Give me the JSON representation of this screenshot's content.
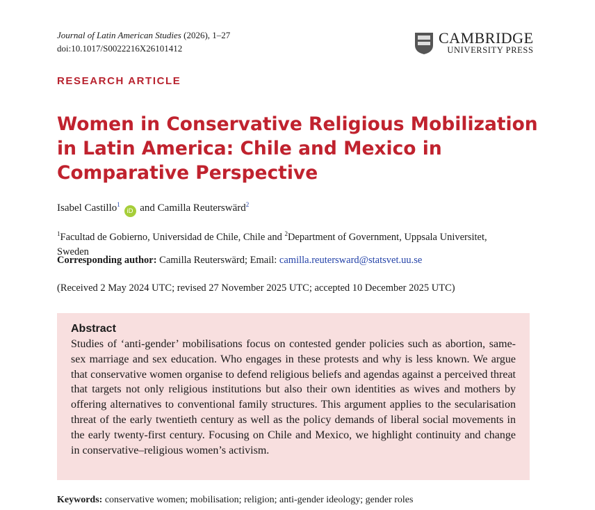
{
  "header": {
    "journal": "Journal of Latin American Studies",
    "issue": "(2026), 1–27",
    "doi": "doi:10.1017/S0022216X26101412",
    "logo_line1": "CAMBRIDGE",
    "logo_line2": "UNIVERSITY PRESS"
  },
  "article_type": "RESEARCH ARTICLE",
  "title": "Women in Conservative Religious Mobilization in Latin America: Chile and Mexico in Comparative Perspective",
  "authors": {
    "author1": "Isabel Castillo",
    "author1_sup": "1",
    "orcid": "iD",
    "connector": "and",
    "author2": "Camilla Reuterswärd",
    "author2_sup": "2"
  },
  "affiliations": {
    "sup1": "1",
    "aff1": "Facultad de Gobierno, Universidad de Chile, Chile and",
    "sup2": "2",
    "aff2": "Department of Government, Uppsala Universitet, Sweden"
  },
  "corresponding": {
    "label": "Corresponding author:",
    "text": "Camilla Reuterswärd; Email:",
    "email": "camilla.reutersward@statsvet.uu.se"
  },
  "received": "(Received 2 May 2024 UTC; revised 27 November 2025 UTC; accepted 10 December 2025 UTC)",
  "abstract": {
    "heading": "Abstract",
    "text": "Studies of ‘anti-gender’ mobilisations focus on contested gender policies such as abortion, same-sex marriage and sex education. Who engages in these protests and why is less known. We argue that conservative women organise to defend religious beliefs and agendas against a perceived threat that targets not only religious institutions but also their own identities as wives and mothers by offering alternatives to conventional family structures. This argument applies to the secularisation threat of the early twentieth century as well as the policy demands of liberal social movements in the early twenty-first century. Focusing on Chile and Mexico, we highlight continuity and change in conservative–religious women’s activism."
  },
  "keywords": {
    "label": "Keywords:",
    "text": "conservative women; mobilisation; religion; anti-gender ideology; gender roles"
  }
}
